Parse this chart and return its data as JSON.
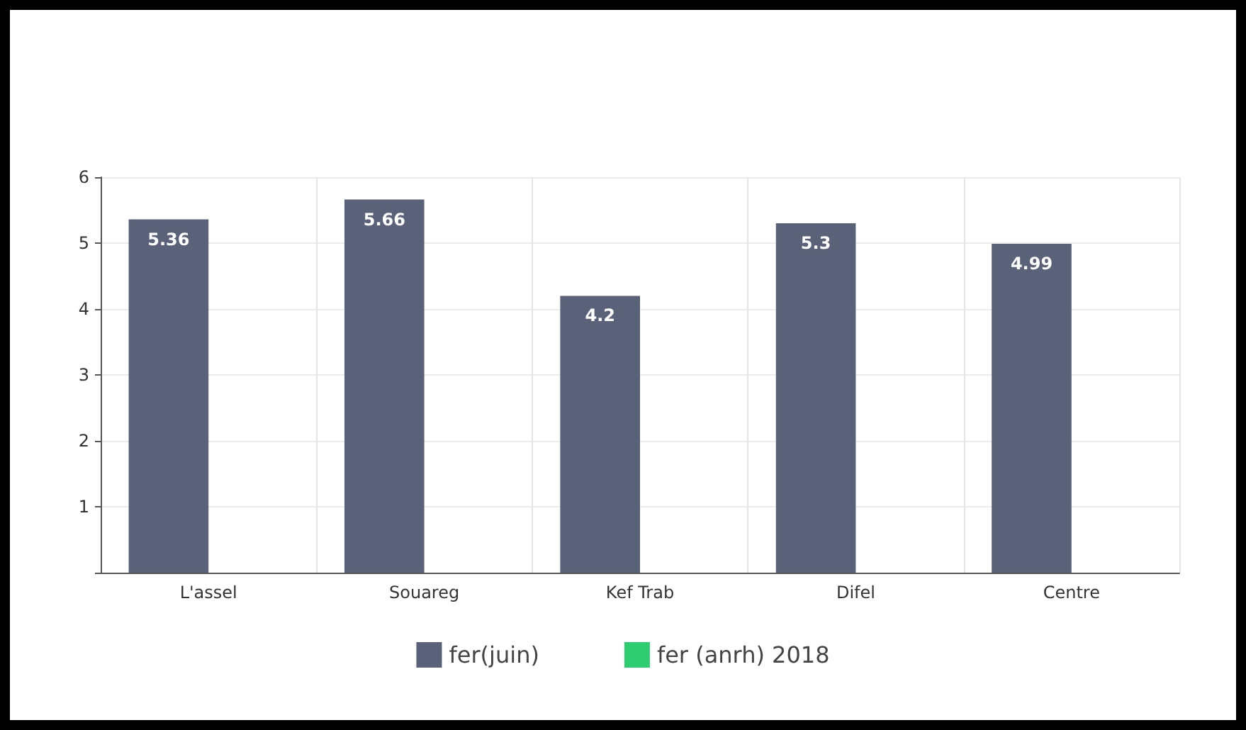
{
  "chart_data": {
    "type": "bar",
    "categories": [
      "L'assel",
      "Souareg",
      "Kef Trab",
      "Difel",
      "Centre"
    ],
    "series": [
      {
        "name": "fer(juin)",
        "color": "#5a6279",
        "values": [
          5.36,
          5.66,
          4.2,
          5.3,
          4.99
        ]
      },
      {
        "name": "fer (anrh) 2018",
        "color": "#2ecc71",
        "values": [
          null,
          null,
          null,
          null,
          null
        ]
      }
    ],
    "ylim": [
      0,
      6
    ],
    "yticks": [
      {
        "value": 0,
        "label": null
      },
      1,
      2,
      3,
      4,
      5,
      6
    ],
    "grid": true,
    "legend": "bottom",
    "data_labels": true
  }
}
